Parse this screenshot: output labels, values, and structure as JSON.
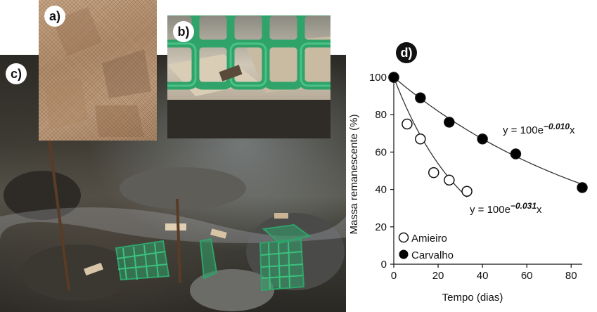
{
  "panels": {
    "a_label": "a)",
    "b_label": "b)",
    "c_label": "c)",
    "d_label": "d)"
  },
  "colors": {
    "mesh_green": "#2fa36a",
    "line": "#333333",
    "marker_fill": "#000000"
  },
  "chart_data": {
    "type": "scatter",
    "xlabel": "Tempo (dias)",
    "ylabel": "Massa remanescente (%)",
    "xlim": [
      0,
      85
    ],
    "ylim": [
      0,
      100
    ],
    "xticks": [
      "0",
      "20",
      "40",
      "60",
      "80"
    ],
    "yticks": [
      "0",
      "20",
      "40",
      "60",
      "80",
      "100"
    ],
    "legend_position": "bottom-left",
    "series": [
      {
        "name": "Amieiro",
        "marker": "open-circle",
        "x": [
          0,
          6,
          12,
          18,
          25,
          33
        ],
        "y": [
          100,
          75,
          67,
          49,
          45,
          39
        ],
        "fit_k": 0.031,
        "equation_prefix": "y = 100e",
        "equation_exponent": "−0.031",
        "equation_suffix": "x"
      },
      {
        "name": "Carvalho",
        "marker": "filled-circle",
        "x": [
          0,
          12,
          25,
          40,
          55,
          85
        ],
        "y": [
          100,
          89,
          76,
          67,
          59,
          41
        ],
        "fit_k": 0.01,
        "equation_prefix": "y = 100e",
        "equation_exponent": "−0.010",
        "equation_suffix": "x"
      }
    ]
  }
}
